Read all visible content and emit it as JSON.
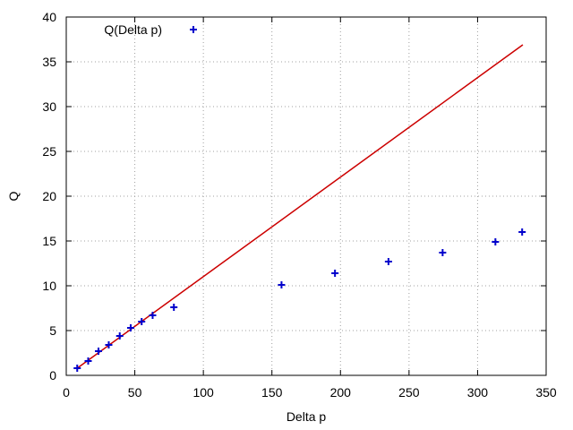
{
  "chart_data": {
    "type": "scatter",
    "title": "",
    "xlabel": "Delta p",
    "ylabel": "Q",
    "xlim": [
      0,
      350
    ],
    "ylim": [
      0,
      40
    ],
    "xticks": [
      0,
      50,
      100,
      150,
      200,
      250,
      300,
      350
    ],
    "yticks": [
      0,
      5,
      10,
      15,
      20,
      25,
      30,
      35,
      40
    ],
    "grid": true,
    "legend_position": "top-left",
    "series": [
      {
        "name": "Q(Delta p)",
        "style": "points",
        "marker": "plus",
        "color": "#0000cc",
        "x": [
          8,
          16,
          23.5,
          31,
          39,
          47,
          55,
          63,
          78.5,
          157,
          196,
          235,
          274.5,
          313,
          332.5
        ],
        "y": [
          0.8,
          1.6,
          2.7,
          3.4,
          4.4,
          5.3,
          6.0,
          6.7,
          7.6,
          10.1,
          11.4,
          12.7,
          13.7,
          14.9,
          16.0
        ]
      },
      {
        "style": "line",
        "color": "#cc0000",
        "x": [
          8,
          333
        ],
        "y": [
          0.8,
          36.9
        ]
      }
    ]
  }
}
